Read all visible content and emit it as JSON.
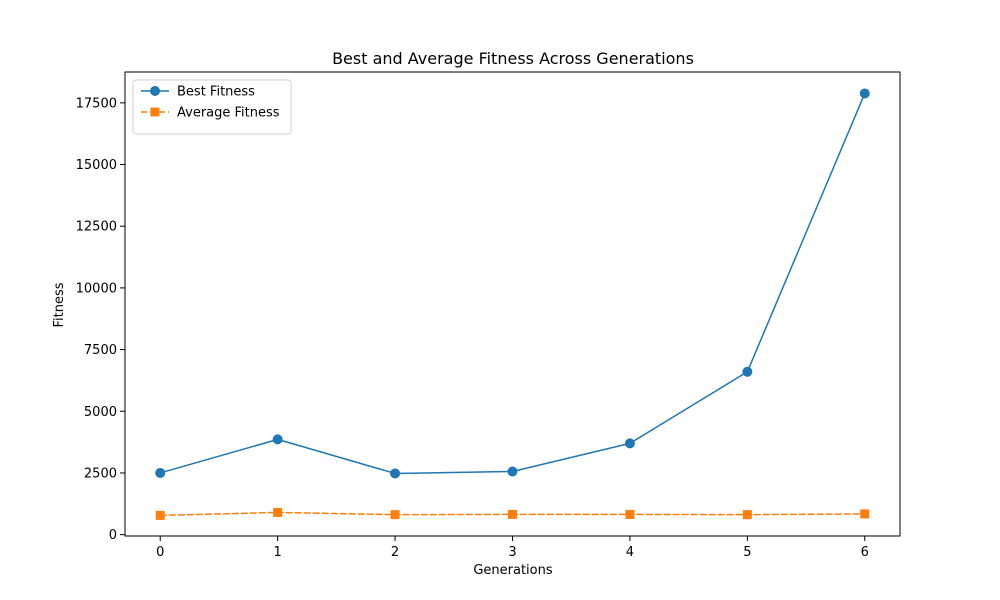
{
  "chart_data": {
    "type": "line",
    "title": "Best and Average Fitness Across Generations",
    "xlabel": "Generations",
    "ylabel": "Fitness",
    "x": [
      0,
      1,
      2,
      3,
      4,
      5,
      6
    ],
    "x_tick_labels": [
      "0",
      "1",
      "2",
      "3",
      "4",
      "5",
      "6"
    ],
    "y_ticks": [
      0,
      2500,
      5000,
      7500,
      10000,
      12500,
      15000,
      17500
    ],
    "y_tick_labels": [
      "0",
      "2500",
      "5000",
      "7500",
      "10000",
      "12500",
      "15000",
      "17500"
    ],
    "xlim": [
      -0.3,
      6.3
    ],
    "ylim": [
      -55,
      18750
    ],
    "grid": false,
    "legend_position": "top-left",
    "series": [
      {
        "name": "Best Fitness",
        "values": [
          2500,
          3860,
          2480,
          2560,
          3700,
          6600,
          17880
        ],
        "color": "#1f77b4",
        "line_style": "solid",
        "marker": "circle"
      },
      {
        "name": "Average Fitness",
        "values": [
          780,
          900,
          810,
          820,
          820,
          810,
          840
        ],
        "color": "#ff7f0e",
        "line_style": "dashed",
        "marker": "square"
      }
    ]
  }
}
